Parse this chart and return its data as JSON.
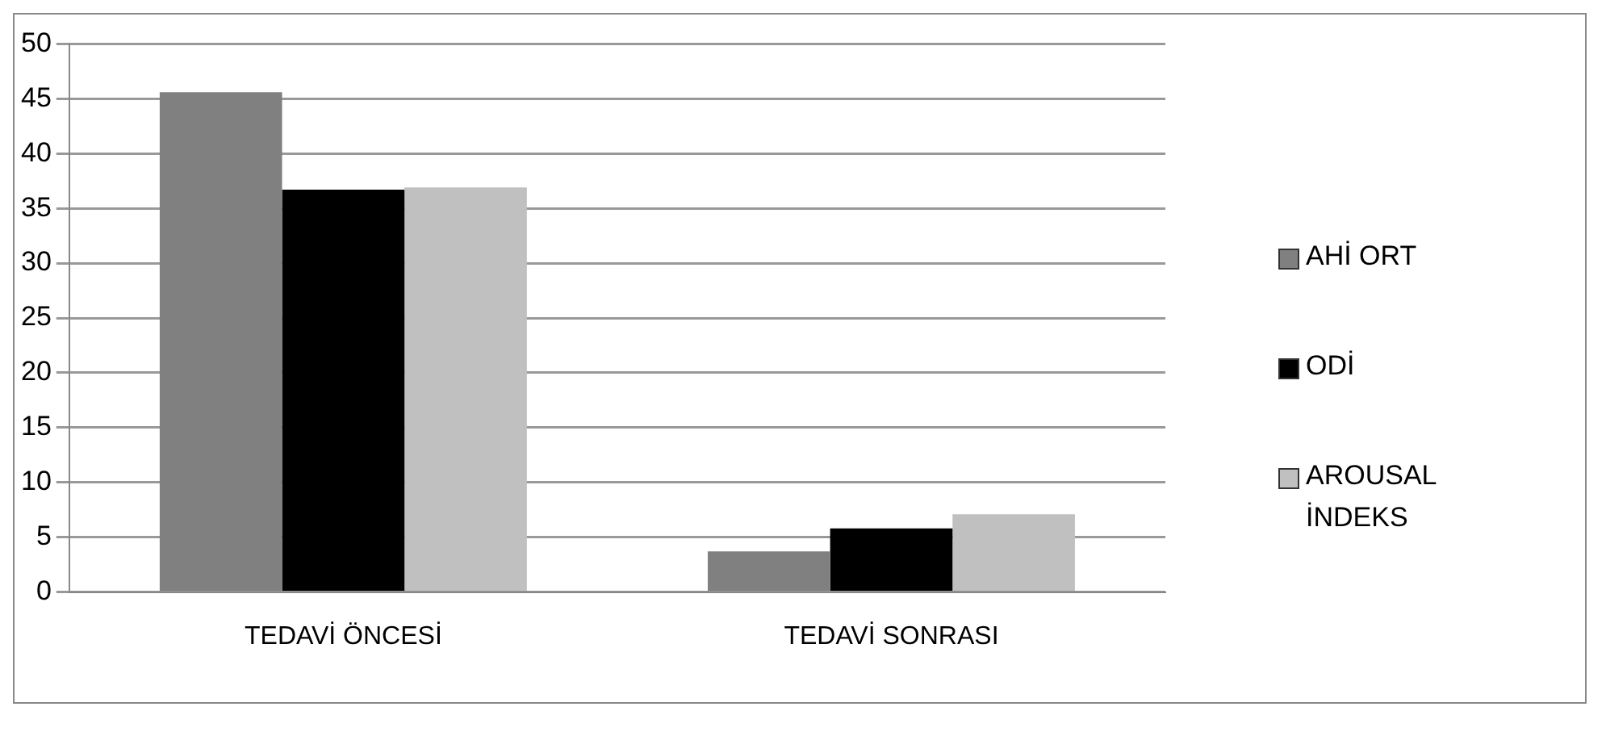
{
  "chart_data": {
    "type": "bar",
    "categories": [
      "TEDAVİ ÖNCESİ",
      "TEDAVİ SONRASI"
    ],
    "series": [
      {
        "name": "AHİ ORT",
        "color": "#808080",
        "values": [
          45.6,
          3.7
        ]
      },
      {
        "name": "ODİ",
        "color": "#000000",
        "values": [
          36.7,
          5.8
        ]
      },
      {
        "name": "AROUSAL İNDEKS",
        "color": "#c0c0c0",
        "values": [
          36.9,
          7.1
        ]
      }
    ],
    "ylim": [
      0,
      50
    ],
    "yticks": [
      0,
      5,
      10,
      15,
      20,
      25,
      30,
      35,
      40,
      45,
      50
    ],
    "grid": "y",
    "legend": "right"
  }
}
